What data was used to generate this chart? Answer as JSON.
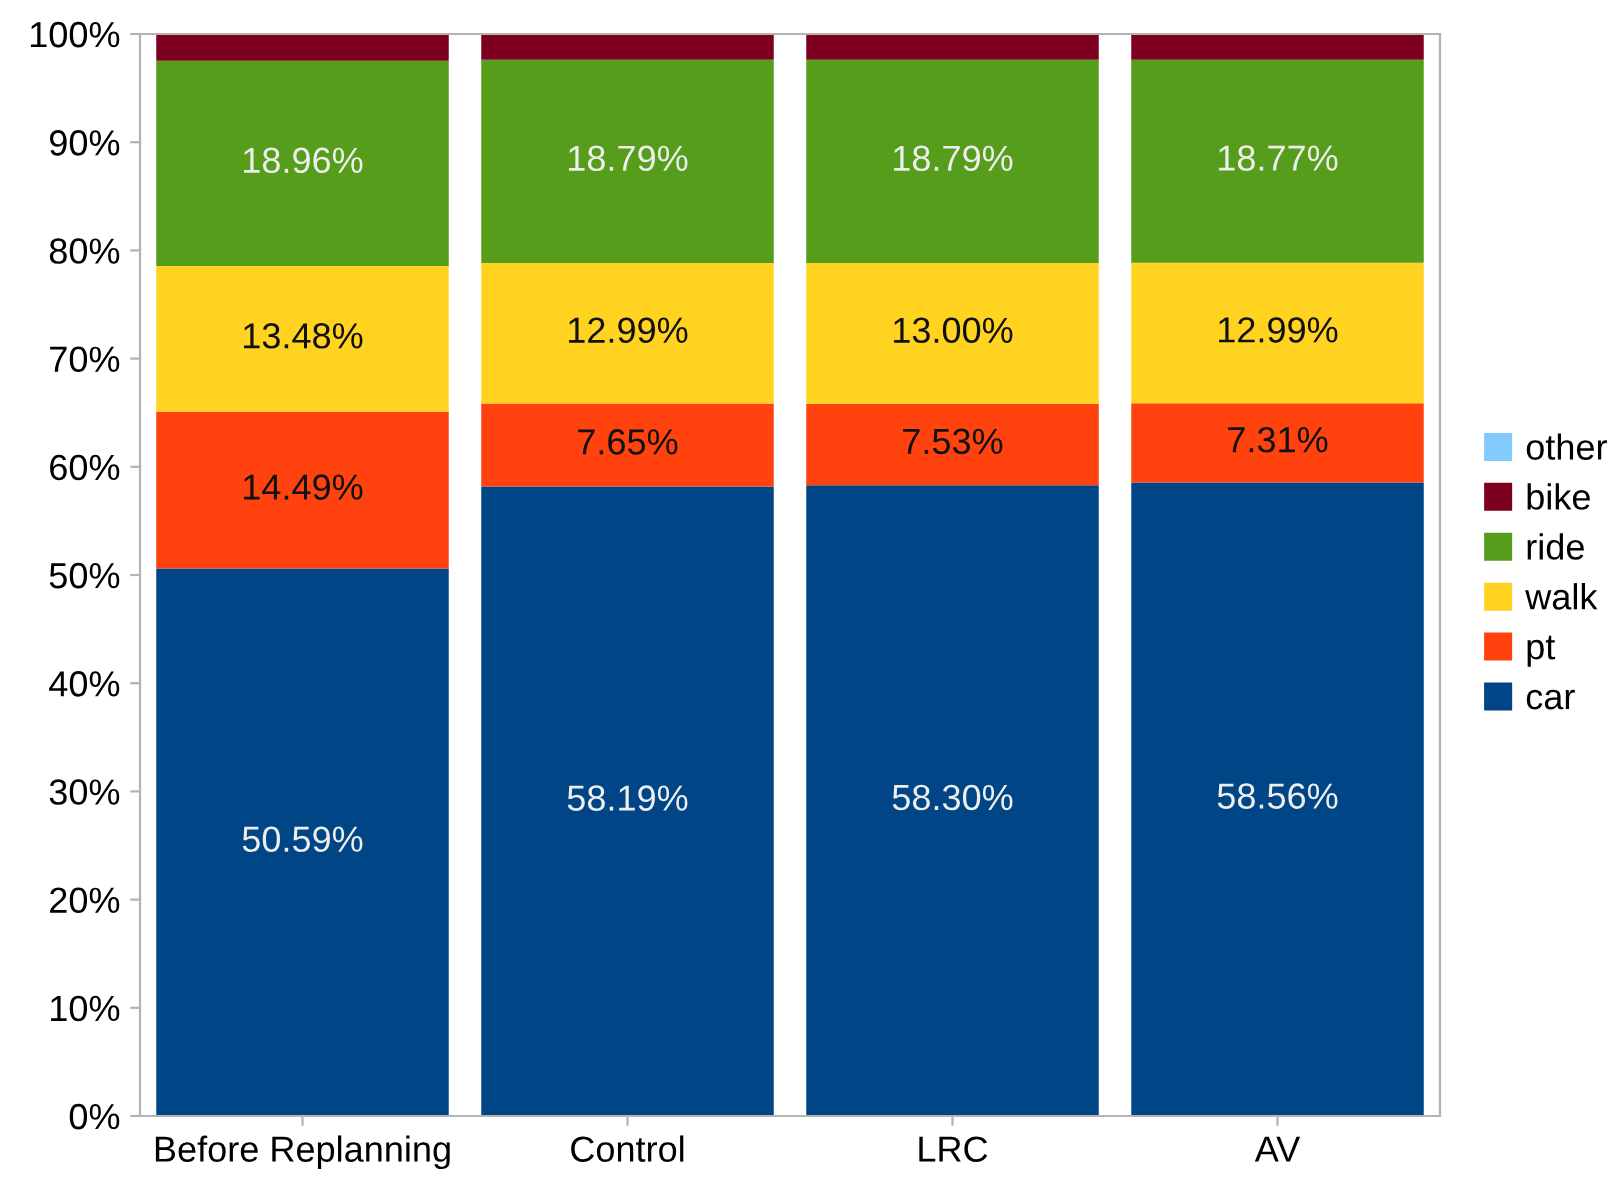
{
  "chart_data": {
    "type": "bar",
    "stacked": true,
    "categories": [
      "Before Replanning",
      "Control",
      "LRC",
      "AV"
    ],
    "series": [
      {
        "name": "car",
        "color": "#004586",
        "values": [
          50.59,
          58.19,
          58.3,
          58.56
        ],
        "value_labels": [
          "50.59%",
          "58.19%",
          "58.30%",
          "58.56%"
        ]
      },
      {
        "name": "pt",
        "color": "#ff420e",
        "values": [
          14.49,
          7.65,
          7.53,
          7.31
        ],
        "value_labels": [
          "14.49%",
          "7.65%",
          "7.53%",
          "7.31%"
        ]
      },
      {
        "name": "walk",
        "color": "#ffd320",
        "values": [
          13.48,
          12.99,
          13.0,
          12.99
        ],
        "value_labels": [
          "13.48%",
          "12.99%",
          "13.00%",
          "12.99%"
        ]
      },
      {
        "name": "ride",
        "color": "#579d1c",
        "values": [
          18.96,
          18.79,
          18.79,
          18.77
        ],
        "value_labels": [
          "18.96%",
          "18.79%",
          "18.79%",
          "18.77%"
        ]
      },
      {
        "name": "bike",
        "color": "#7e0021",
        "values": [
          2.4,
          2.3,
          2.3,
          2.3
        ]
      },
      {
        "name": "other",
        "color": "#83caff",
        "values": [
          null,
          null,
          null,
          null
        ]
      }
    ],
    "ylim": [
      0,
      100
    ],
    "yticks": [
      {
        "value": 0,
        "label": "0%"
      },
      {
        "value": 10,
        "label": "10%"
      },
      {
        "value": 20,
        "label": "20%"
      },
      {
        "value": 30,
        "label": "30%"
      },
      {
        "value": 40,
        "label": "40%"
      },
      {
        "value": 50,
        "label": "50%"
      },
      {
        "value": 60,
        "label": "60%"
      },
      {
        "value": 70,
        "label": "70%"
      },
      {
        "value": 80,
        "label": "80%"
      },
      {
        "value": 90,
        "label": "90%"
      },
      {
        "value": 100,
        "label": "100%"
      }
    ],
    "legend": "right"
  }
}
